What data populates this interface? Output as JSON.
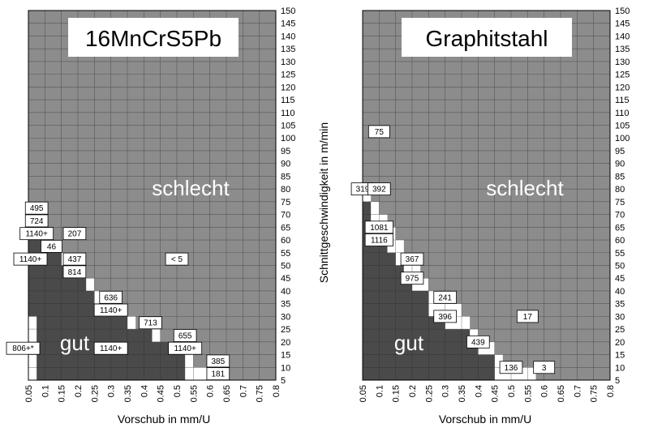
{
  "chart_data": [
    {
      "type": "heatmap",
      "title": "16MnCrS5Pb",
      "xlabel": "Vorschub in mm/U",
      "ylabel": "",
      "x_ticks": [
        "0.05",
        "0.1",
        "0.15",
        "0.2",
        "0.25",
        "0.3",
        "0.35",
        "0.4",
        "0.45",
        "0.5",
        "0.55",
        "0.6",
        "0.65",
        "0.7",
        "0.75",
        "0.8"
      ],
      "y_ticks": [
        "5",
        "10",
        "15",
        "20",
        "25",
        "30",
        "35",
        "40",
        "45",
        "50",
        "55",
        "60",
        "65",
        "70",
        "75",
        "80",
        "85",
        "90",
        "95",
        "100",
        "105",
        "110",
        "115",
        "120",
        "125",
        "130",
        "135",
        "140",
        "145",
        "150"
      ],
      "xlim": [
        0.05,
        0.8
      ],
      "ylim": [
        5,
        150
      ],
      "zones": [
        "gut",
        "schlecht"
      ],
      "boundary": {
        "gut_upper": [
          [
            0.05,
            60
          ],
          [
            0.1,
            60
          ],
          [
            0.1,
            55
          ],
          [
            0.15,
            55
          ],
          [
            0.15,
            50
          ],
          [
            0.2,
            50
          ],
          [
            0.2,
            45
          ],
          [
            0.225,
            45
          ],
          [
            0.225,
            40
          ],
          [
            0.25,
            40
          ],
          [
            0.25,
            35
          ],
          [
            0.275,
            35
          ],
          [
            0.275,
            30
          ],
          [
            0.35,
            30
          ],
          [
            0.35,
            25
          ],
          [
            0.425,
            25
          ],
          [
            0.425,
            20
          ],
          [
            0.5,
            20
          ],
          [
            0.5,
            15
          ],
          [
            0.525,
            15
          ],
          [
            0.525,
            5
          ]
        ],
        "gut_lower": [
          [
            0.05,
            30
          ],
          [
            0.075,
            30
          ],
          [
            0.075,
            5
          ]
        ],
        "schlecht_lower": [
          [
            0.05,
            65
          ],
          [
            0.1,
            65
          ],
          [
            0.1,
            60
          ],
          [
            0.15,
            60
          ],
          [
            0.15,
            55
          ],
          [
            0.175,
            55
          ],
          [
            0.175,
            50
          ],
          [
            0.225,
            50
          ],
          [
            0.225,
            45
          ],
          [
            0.25,
            45
          ],
          [
            0.25,
            40
          ],
          [
            0.275,
            40
          ],
          [
            0.275,
            35
          ],
          [
            0.3,
            35
          ],
          [
            0.3,
            30
          ],
          [
            0.375,
            30
          ],
          [
            0.375,
            25
          ],
          [
            0.45,
            25
          ],
          [
            0.45,
            20
          ],
          [
            0.5,
            20
          ],
          [
            0.5,
            15
          ],
          [
            0.55,
            15
          ],
          [
            0.55,
            10
          ],
          [
            0.6,
            10
          ],
          [
            0.6,
            5
          ]
        ]
      },
      "annotations": [
        {
          "text": "495",
          "x": 0.075,
          "y": 72.5
        },
        {
          "text": "724",
          "x": 0.075,
          "y": 67.5
        },
        {
          "text": "1140+",
          "x": 0.075,
          "y": 62.5
        },
        {
          "text": "207",
          "x": 0.19,
          "y": 62.5
        },
        {
          "text": "46",
          "x": 0.12,
          "y": 57.5
        },
        {
          "text": "437",
          "x": 0.19,
          "y": 52.5
        },
        {
          "text": "1140+",
          "x": 0.025,
          "y": 52.5
        },
        {
          "text": "814",
          "x": 0.19,
          "y": 47.5
        },
        {
          "text": "636",
          "x": 0.3,
          "y": 37.5
        },
        {
          "text": "1140+",
          "x": 0.3,
          "y": 32.5
        },
        {
          "text": "713",
          "x": 0.42,
          "y": 27.5
        },
        {
          "text": "655",
          "x": 0.525,
          "y": 22.5
        },
        {
          "text": "1140+",
          "x": 0.525,
          "y": 17.5
        },
        {
          "text": "1140+",
          "x": 0.3,
          "y": 17.5
        },
        {
          "text": "806+*",
          "x": 0.02,
          "y": 17.5
        },
        {
          "text": "385",
          "x": 0.625,
          "y": 12.5
        },
        {
          "text": "181",
          "x": 0.625,
          "y": 7.5
        },
        {
          "text": "< 5",
          "x": 0.5,
          "y": 52.5
        }
      ]
    },
    {
      "type": "heatmap",
      "title": "Graphitstahl",
      "xlabel": "Vorschub in mm/U",
      "ylabel": "Schnittgeschwindigkeit in m/min",
      "x_ticks": [
        "0.05",
        "0.1",
        "0.15",
        "0.2",
        "0.25",
        "0.3",
        "0.35",
        "0.4",
        "0.45",
        "0.5",
        "0.55",
        "0.6",
        "0.65",
        "0.7",
        "0.75",
        "0.8"
      ],
      "y_ticks": [
        "5",
        "10",
        "15",
        "20",
        "25",
        "30",
        "35",
        "40",
        "45",
        "50",
        "55",
        "60",
        "65",
        "70",
        "75",
        "80",
        "85",
        "90",
        "95",
        "100",
        "105",
        "110",
        "115",
        "120",
        "125",
        "130",
        "135",
        "140",
        "145",
        "150"
      ],
      "xlim": [
        0.05,
        0.8
      ],
      "ylim": [
        5,
        150
      ],
      "zones": [
        "gut",
        "schlecht"
      ],
      "boundary": {
        "gut_upper": [
          [
            0.05,
            75
          ],
          [
            0.075,
            75
          ],
          [
            0.075,
            60
          ],
          [
            0.125,
            60
          ],
          [
            0.125,
            55
          ],
          [
            0.15,
            55
          ],
          [
            0.15,
            50
          ],
          [
            0.175,
            50
          ],
          [
            0.175,
            45
          ],
          [
            0.2,
            45
          ],
          [
            0.2,
            40
          ],
          [
            0.25,
            40
          ],
          [
            0.25,
            30
          ],
          [
            0.3,
            30
          ],
          [
            0.3,
            25
          ],
          [
            0.375,
            25
          ],
          [
            0.375,
            20
          ],
          [
            0.4,
            20
          ],
          [
            0.4,
            15
          ],
          [
            0.45,
            15
          ],
          [
            0.45,
            5
          ]
        ],
        "schlecht_lower": [
          [
            0.05,
            80
          ],
          [
            0.075,
            80
          ],
          [
            0.075,
            75
          ],
          [
            0.1,
            75
          ],
          [
            0.1,
            70
          ],
          [
            0.125,
            70
          ],
          [
            0.125,
            65
          ],
          [
            0.15,
            65
          ],
          [
            0.15,
            60
          ],
          [
            0.175,
            60
          ],
          [
            0.175,
            55
          ],
          [
            0.2,
            55
          ],
          [
            0.2,
            50
          ],
          [
            0.225,
            50
          ],
          [
            0.225,
            45
          ],
          [
            0.25,
            45
          ],
          [
            0.25,
            40
          ],
          [
            0.275,
            40
          ],
          [
            0.275,
            35
          ],
          [
            0.35,
            35
          ],
          [
            0.35,
            30
          ],
          [
            0.375,
            30
          ],
          [
            0.375,
            25
          ],
          [
            0.4,
            25
          ],
          [
            0.4,
            20
          ],
          [
            0.45,
            20
          ],
          [
            0.45,
            15
          ],
          [
            0.475,
            15
          ],
          [
            0.475,
            10
          ],
          [
            0.575,
            10
          ],
          [
            0.575,
            5
          ]
        ]
      },
      "annotations": [
        {
          "text": "75",
          "x": 0.1,
          "y": 102.5
        },
        {
          "text": "319",
          "x": 0.05,
          "y": 80
        },
        {
          "text": "392",
          "x": 0.1,
          "y": 80
        },
        {
          "text": "1081",
          "x": 0.1,
          "y": 65
        },
        {
          "text": "1116",
          "x": 0.1,
          "y": 60
        },
        {
          "text": "367",
          "x": 0.2,
          "y": 52.5
        },
        {
          "text": "975",
          "x": 0.2,
          "y": 45
        },
        {
          "text": "241",
          "x": 0.3,
          "y": 37.5
        },
        {
          "text": "396",
          "x": 0.3,
          "y": 30
        },
        {
          "text": "17",
          "x": 0.55,
          "y": 30
        },
        {
          "text": "439",
          "x": 0.4,
          "y": 20
        },
        {
          "text": "136",
          "x": 0.5,
          "y": 10
        },
        {
          "text": "3",
          "x": 0.6,
          "y": 10
        }
      ]
    }
  ]
}
